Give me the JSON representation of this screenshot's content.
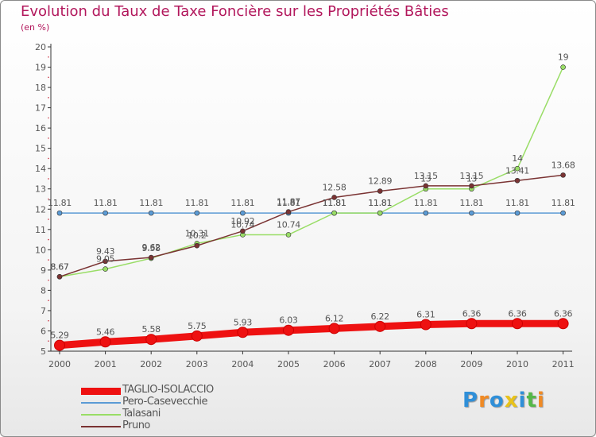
{
  "chart_data": {
    "type": "line",
    "title": "Evolution du Taux de Taxe Foncière sur les Propriétés Bâties",
    "subtitle": "(en %)",
    "categories": [
      "2000",
      "2001",
      "2002",
      "2003",
      "2004",
      "2005",
      "2006",
      "2007",
      "2008",
      "2009",
      "2010",
      "2011"
    ],
    "ylim": [
      5,
      20
    ],
    "yticks": [
      "5",
      "6",
      "7",
      "8",
      "9",
      "10",
      "11",
      "12",
      "13",
      "14",
      "15",
      "16",
      "17",
      "18",
      "19",
      "20"
    ],
    "grid": false,
    "legend_position": "bottom-left",
    "series": [
      {
        "name": "TAGLIO-ISOLACCIO",
        "color": "#ee1111",
        "values": [
          5.29,
          5.46,
          5.58,
          5.75,
          5.93,
          6.03,
          6.12,
          6.22,
          6.31,
          6.36,
          6.36,
          6.36
        ],
        "labels": [
          "5.29",
          "5.46",
          "5.58",
          "5.75",
          "5.93",
          "6.03",
          "6.12",
          "6.22",
          "6.31",
          "6.36",
          "6.36",
          "6.36"
        ]
      },
      {
        "name": "Pero-Casevecchie",
        "color": "#5b9bd5",
        "values": [
          11.81,
          11.81,
          11.81,
          11.81,
          11.81,
          11.81,
          11.81,
          11.81,
          11.81,
          11.81,
          11.81,
          11.81
        ],
        "labels": [
          "11.81",
          "11.81",
          "11.81",
          "11.81",
          "11.81",
          "11.81",
          "11.81",
          "11.81",
          "11.81",
          "11.81",
          "11.81",
          "11.81"
        ]
      },
      {
        "name": "Talasani",
        "color": "#99dd66",
        "values": [
          8.67,
          9.05,
          9.58,
          10.31,
          10.74,
          10.74,
          11.81,
          11.81,
          13.0,
          13.0,
          14.0,
          19.0
        ],
        "labels": [
          "8.67",
          "9.05",
          "9.58",
          "10.31",
          "10.74",
          "10.74",
          "11.81",
          "11.81",
          "13",
          "13",
          "14",
          "19"
        ]
      },
      {
        "name": "Pruno",
        "color": "#7a3333",
        "values": [
          8.67,
          9.43,
          9.62,
          10.2,
          10.92,
          11.87,
          12.58,
          12.89,
          13.15,
          13.15,
          13.41,
          13.68
        ],
        "labels": [
          "8.67",
          "9.43",
          "9.62",
          "10.2",
          "10.92",
          "11.87",
          "12.58",
          "12.89",
          "13.15",
          "13.15",
          "13.41",
          "13.68"
        ]
      }
    ]
  },
  "logo": {
    "letters": [
      "P",
      "r",
      "o",
      "x",
      "i",
      "t",
      "i"
    ],
    "colors": [
      "#2f8fd8",
      "#f08a24",
      "#2f8fd8",
      "#e8c21a",
      "#2f8fd8",
      "#54b848",
      "#f08a24"
    ]
  }
}
